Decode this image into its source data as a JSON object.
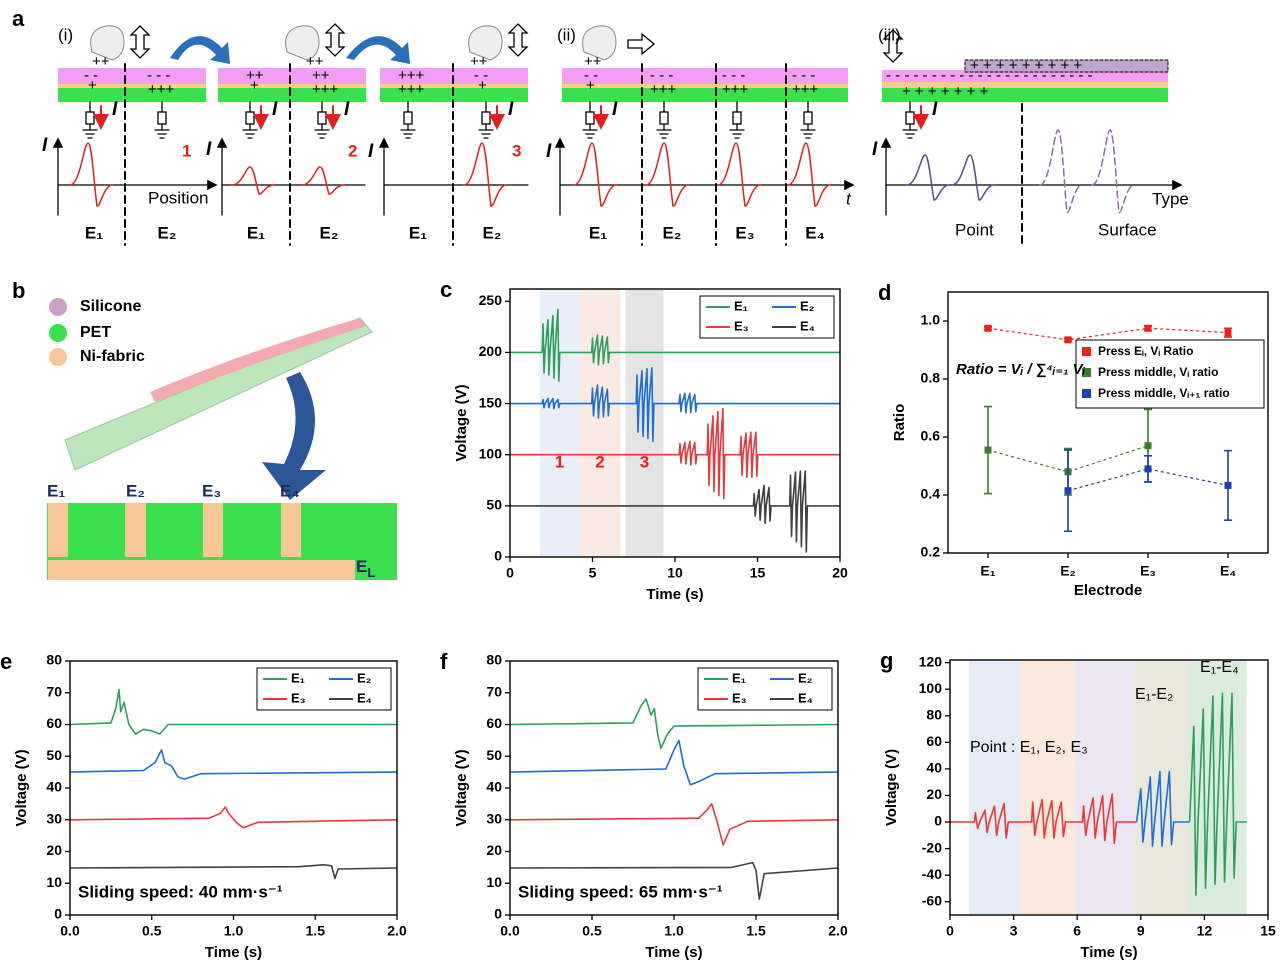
{
  "panel_labels": [
    "a",
    "b"
  ],
  "a": {
    "sections": [
      "(i)",
      "(ii)",
      "(iii)"
    ],
    "steps": [
      "1",
      "2",
      "3"
    ],
    "current": "I",
    "axis_labels": [
      "Position",
      "t",
      "Type"
    ],
    "electrodes": [
      "E₁",
      "E₂",
      "E₃",
      "E₄"
    ],
    "modes": [
      "Point",
      "Surface"
    ],
    "charges": [
      "++",
      "- -",
      "+++",
      "- - -",
      "+",
      "- - - - - - - - - - - - - - - - - - - - - - -",
      "+ + + + + + + + +",
      "+  +  +  +  +  +  +"
    ]
  },
  "b": {
    "legend": [
      "Silicone",
      "PET",
      "Ni-fabric"
    ],
    "electrodes": [
      "E₁",
      "E₂",
      "E₃",
      "E₄"
    ],
    "ground_electrode": {
      "main": "E",
      "sub": "L"
    }
  },
  "chart_data": [
    {
      "type": "line",
      "label": "c",
      "xlabel": "Time (s)",
      "ylabel": "Voltage (V)",
      "xlim": [
        0,
        20
      ],
      "xticks": [
        0,
        5,
        10,
        15,
        20
      ],
      "ylim": [
        0,
        262
      ],
      "yticks": [
        0,
        50,
        100,
        150,
        200,
        250
      ],
      "legend": "upper right",
      "regions": [
        {
          "x": [
            1.8,
            4.2
          ],
          "color": "#e9eff9",
          "label": "1"
        },
        {
          "x": [
            4.2,
            6.7
          ],
          "color": "#fbe9e4",
          "label": "2"
        },
        {
          "x": [
            7.0,
            9.3
          ],
          "color": "#e4e4e4",
          "label": "3"
        }
      ],
      "series": [
        {
          "name": "E₁",
          "color": "#2ca05a",
          "x": [
            0,
            1.95,
            2.0,
            2.06,
            2.12,
            2.3,
            2.36,
            2.42,
            2.6,
            2.66,
            2.72,
            2.9,
            2.96,
            3.02,
            4.95,
            5.0,
            5.06,
            5.12,
            5.3,
            5.36,
            5.42,
            5.6,
            5.66,
            5.72,
            5.9,
            5.96,
            6.02,
            20
          ],
          "y": [
            200,
            200,
            228,
            180,
            200,
            232,
            178,
            200,
            236,
            175,
            200,
            242,
            172,
            200,
            200,
            214,
            190,
            200,
            217,
            188,
            200,
            216,
            189,
            200,
            215,
            190,
            200,
            200
          ]
        },
        {
          "name": "E₂",
          "color": "#1f6fd0",
          "x": [
            0,
            1.95,
            2.0,
            2.06,
            2.12,
            2.3,
            2.36,
            2.42,
            2.6,
            2.66,
            2.72,
            2.9,
            2.96,
            3.02,
            4.95,
            5.0,
            5.06,
            5.12,
            5.3,
            5.36,
            5.42,
            5.6,
            5.66,
            5.72,
            5.9,
            5.96,
            6.02,
            7.65,
            7.7,
            7.76,
            7.82,
            8.0,
            8.06,
            8.12,
            8.3,
            8.36,
            8.42,
            8.6,
            8.66,
            8.72,
            10.25,
            10.3,
            10.36,
            10.42,
            10.6,
            10.66,
            10.72,
            10.9,
            10.96,
            11.02,
            11.2,
            11.26,
            11.32,
            20
          ],
          "y": [
            150,
            150,
            154,
            146,
            150,
            155,
            146,
            150,
            155,
            145,
            150,
            154,
            146,
            150,
            150,
            165,
            138,
            150,
            168,
            136,
            150,
            166,
            137,
            150,
            164,
            138,
            150,
            150,
            178,
            122,
            150,
            182,
            118,
            150,
            184,
            116,
            150,
            185,
            113,
            150,
            150,
            159,
            142,
            150,
            160,
            141,
            150,
            160,
            141,
            150,
            159,
            142,
            150,
            150
          ]
        },
        {
          "name": "E₃",
          "color": "#e8393c",
          "x": [
            0,
            10.25,
            10.3,
            10.36,
            10.42,
            10.6,
            10.66,
            10.72,
            10.9,
            10.96,
            11.02,
            11.2,
            11.26,
            11.32,
            11.95,
            12.0,
            12.06,
            12.12,
            12.3,
            12.36,
            12.42,
            12.6,
            12.66,
            12.72,
            12.9,
            12.96,
            13.02,
            13.95,
            14.0,
            14.06,
            14.12,
            14.3,
            14.36,
            14.42,
            14.6,
            14.66,
            14.72,
            14.9,
            14.96,
            15.02,
            20
          ],
          "y": [
            100,
            100,
            111,
            92,
            100,
            112,
            91,
            100,
            113,
            90,
            100,
            112,
            91,
            100,
            100,
            130,
            70,
            100,
            138,
            64,
            100,
            142,
            60,
            100,
            145,
            57,
            100,
            100,
            118,
            80,
            100,
            121,
            78,
            100,
            122,
            78,
            100,
            122,
            79,
            100,
            100
          ]
        },
        {
          "name": "E₄",
          "color": "#404040",
          "x": [
            0,
            14.75,
            14.8,
            14.86,
            14.92,
            15.1,
            15.16,
            15.22,
            15.4,
            15.46,
            15.52,
            15.7,
            15.76,
            15.82,
            16.95,
            17.0,
            17.06,
            17.12,
            17.3,
            17.36,
            17.42,
            17.6,
            17.66,
            17.72,
            17.9,
            17.96,
            18.02,
            20
          ],
          "y": [
            50,
            50,
            62,
            40,
            50,
            66,
            36,
            50,
            70,
            33,
            50,
            68,
            35,
            50,
            50,
            80,
            20,
            50,
            83,
            15,
            50,
            84,
            10,
            50,
            84,
            5,
            50,
            50
          ]
        }
      ]
    },
    {
      "type": "scatter",
      "label": "d",
      "xlabel": "Electrode",
      "ylabel": "Ratio",
      "annotation": "Ratio = Vᵢ / ∑⁴ᵢ₌₁ Vᵢ",
      "categories": [
        "E₁",
        "E₂",
        "E₃",
        "E₄"
      ],
      "ylim": [
        0.2,
        1.1
      ],
      "yticks": [
        0.2,
        0.4,
        0.6,
        0.8,
        {
          "value": 1,
          "label": "1.0"
        }
      ],
      "legend": "upper right",
      "series": [
        {
          "name": "Press Eᵢ, Vᵢ Ratio",
          "color": "#e8201e",
          "values": [
            0.975,
            0.935,
            0.975,
            0.96
          ],
          "errors": [
            0.005,
            0.005,
            0.008,
            0.015
          ]
        },
        {
          "name": "Press middle, Vᵢ ratio",
          "color": "#3a7d2a",
          "values": [
            0.555,
            0.48,
            0.57,
            null
          ],
          "errors": [
            0.15,
            0.08,
            0.125,
            null
          ]
        },
        {
          "name": "Press middle, Vᵢ₊₁ ratio",
          "color": "#1f3fb0",
          "values": [
            null,
            0.415,
            0.49,
            0.433
          ],
          "errors": [
            null,
            0.14,
            0.045,
            0.12
          ]
        }
      ]
    },
    {
      "type": "line",
      "label": "e",
      "xlabel": "Time (s)",
      "ylabel": "Voltage (V)",
      "annotation": "Sliding speed: 40 mm·s⁻¹",
      "xlim": [
        0,
        2
      ],
      "xticks": [
        {
          "value": 0,
          "label": "0.0"
        },
        0.5,
        {
          "value": 1,
          "label": "1.0"
        },
        1.5,
        {
          "value": 2,
          "label": "2.0"
        }
      ],
      "ylim": [
        0,
        80
      ],
      "yticks": [
        0,
        10,
        20,
        30,
        40,
        50,
        60,
        70,
        80
      ],
      "legend": "upper right",
      "series": [
        {
          "name": "E₁",
          "color": "#2ca05a",
          "x": [
            0,
            0.25,
            0.28,
            0.3,
            0.31,
            0.33,
            0.36,
            0.4,
            0.45,
            0.5,
            0.55,
            0.6,
            2
          ],
          "y": [
            60,
            60.5,
            65,
            71,
            64,
            67,
            60,
            57,
            58.5,
            58,
            57,
            60,
            60
          ]
        },
        {
          "name": "E₂",
          "color": "#1f6fd0",
          "x": [
            0,
            0.45,
            0.52,
            0.56,
            0.58,
            0.62,
            0.66,
            0.7,
            0.8,
            2
          ],
          "y": [
            45,
            45.5,
            48,
            52,
            48,
            47,
            43.5,
            42.8,
            44.5,
            45
          ]
        },
        {
          "name": "E₃",
          "color": "#e8393c",
          "x": [
            0,
            0.85,
            0.92,
            0.95,
            0.97,
            1.02,
            1.06,
            1.15,
            2
          ],
          "y": [
            30,
            30.5,
            32,
            34,
            32,
            29,
            27.5,
            29.2,
            30
          ]
        },
        {
          "name": "E₄",
          "color": "#404040",
          "x": [
            0,
            1.4,
            1.55,
            1.6,
            1.62,
            1.64,
            2
          ],
          "y": [
            14.8,
            15.2,
            15.8,
            15.5,
            11.5,
            14.5,
            14.8
          ]
        }
      ]
    },
    {
      "type": "line",
      "label": "f",
      "xlabel": "Time (s)",
      "ylabel": "Voltage (V)",
      "annotation": "Sliding speed: 65 mm·s⁻¹",
      "xlim": [
        0,
        2
      ],
      "xticks": [
        {
          "value": 0,
          "label": "0.0"
        },
        0.5,
        {
          "value": 1,
          "label": "1.0"
        },
        1.5,
        {
          "value": 2,
          "label": "2.0"
        }
      ],
      "ylim": [
        0,
        80
      ],
      "yticks": [
        0,
        10,
        20,
        30,
        40,
        50,
        60,
        70,
        80
      ],
      "legend": "upper right",
      "series": [
        {
          "name": "E₁",
          "color": "#2ca05a",
          "x": [
            0,
            0.75,
            0.8,
            0.83,
            0.86,
            0.88,
            0.9,
            0.92,
            0.96,
            1.0,
            2
          ],
          "y": [
            60,
            60.5,
            66,
            68,
            63,
            65,
            57,
            52.5,
            57,
            59.5,
            60
          ]
        },
        {
          "name": "E₂",
          "color": "#1f6fd0",
          "x": [
            0,
            0.95,
            1.0,
            1.03,
            1.06,
            1.1,
            1.15,
            1.25,
            2
          ],
          "y": [
            45,
            46,
            52,
            55,
            47,
            41,
            42,
            44.5,
            45
          ]
        },
        {
          "name": "E₃",
          "color": "#e8393c",
          "x": [
            0,
            1.15,
            1.2,
            1.23,
            1.26,
            1.3,
            1.34,
            1.45,
            2
          ],
          "y": [
            30,
            30.5,
            33,
            35,
            30,
            22,
            27,
            29.5,
            30
          ]
        },
        {
          "name": "E₄",
          "color": "#404040",
          "x": [
            0,
            1.35,
            1.48,
            1.5,
            1.52,
            1.55,
            2
          ],
          "y": [
            14.8,
            15,
            16.5,
            14,
            5,
            13,
            14.8
          ]
        }
      ]
    },
    {
      "type": "line",
      "label": "g",
      "xlabel": "Time (s)",
      "ylabel": "Voltage (V)",
      "annotations": [
        "Point : E₁, E₂, E₃",
        "E₁-E₂",
        "E₁-E₄"
      ],
      "xlim": [
        0,
        15
      ],
      "xticks": [
        0,
        3,
        6,
        9,
        12,
        15
      ],
      "ylim": [
        -70,
        122
      ],
      "yticks": [
        -60,
        -40,
        -20,
        0,
        20,
        40,
        60,
        80,
        100,
        120
      ],
      "regions": [
        {
          "x": [
            0.9,
            3.3
          ],
          "color": "#e6ecf7"
        },
        {
          "x": [
            3.3,
            5.9
          ],
          "color": "#fbe9dc"
        },
        {
          "x": [
            5.9,
            8.7
          ],
          "color": "#ece6f3"
        },
        {
          "x": [
            8.7,
            11.3
          ],
          "color": "#e9e8dc"
        },
        {
          "x": [
            11.3,
            14.0
          ],
          "color": "#dcecdc"
        }
      ],
      "series": [
        {
          "color": "#e8393c",
          "x": [
            0,
            1.15,
            1.2,
            1.3,
            1.4,
            1.65,
            1.75,
            1.85,
            2.1,
            2.2,
            2.3,
            2.55,
            2.65,
            2.75,
            3.85,
            3.9,
            4.0,
            4.1,
            4.35,
            4.45,
            4.55,
            4.8,
            4.9,
            5.0,
            5.25,
            5.35,
            5.45,
            6.25,
            6.3,
            6.4,
            6.5,
            6.75,
            6.85,
            6.95,
            7.2,
            7.3,
            7.4,
            7.65,
            7.75,
            7.85,
            8.8
          ],
          "y": [
            0,
            0,
            7,
            -5,
            0,
            9,
            -8,
            0,
            12,
            -10,
            0,
            14,
            -12,
            0,
            0,
            15,
            -10,
            0,
            17,
            -12,
            0,
            16,
            -12,
            0,
            15,
            -11,
            0,
            0,
            12,
            -10,
            0,
            18,
            -12,
            0,
            20,
            -14,
            0,
            21,
            -16,
            0,
            0
          ]
        },
        {
          "color": "#1f6fd0",
          "x": [
            8.8,
            9.0,
            9.1,
            9.2,
            9.45,
            9.55,
            9.65,
            9.9,
            10.0,
            10.1,
            10.35,
            10.45,
            10.55,
            11.3
          ],
          "y": [
            0,
            25,
            -15,
            0,
            34,
            -18,
            0,
            38,
            -18,
            0,
            38,
            -17,
            0,
            0
          ]
        },
        {
          "color": "#2ca05a",
          "x": [
            11.3,
            11.5,
            11.6,
            11.7,
            11.95,
            12.05,
            12.15,
            12.4,
            12.5,
            12.6,
            12.85,
            12.95,
            13.05,
            13.3,
            13.4,
            13.5,
            14.0
          ],
          "y": [
            0,
            72,
            -55,
            0,
            85,
            -50,
            0,
            95,
            -47,
            0,
            97,
            -45,
            0,
            97,
            -42,
            0,
            0
          ]
        }
      ]
    }
  ]
}
